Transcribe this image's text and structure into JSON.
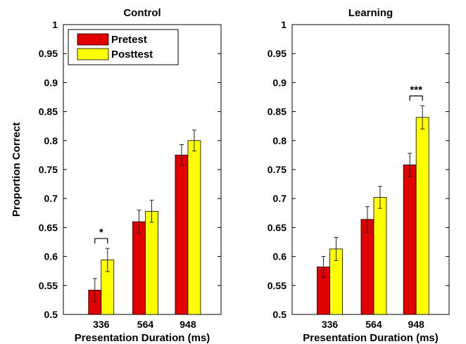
{
  "chart_data": [
    {
      "type": "bar",
      "title": "Control",
      "xlabel": "Presentation Duration (ms)",
      "ylabel": "Proportion Correct",
      "ylim": [
        0.5,
        1
      ],
      "yticks": [
        "0.5",
        "0.55",
        "0.6",
        "0.65",
        "0.7",
        "0.75",
        "0.8",
        "0.85",
        "0.9",
        "0.95",
        "1"
      ],
      "categories": [
        "336",
        "564",
        "948"
      ],
      "legend": {
        "placement": "top-left"
      },
      "series": [
        {
          "name": "Pretest",
          "color": "#e00000",
          "values": [
            0.542,
            0.66,
            0.775
          ],
          "errors": [
            0.02,
            0.02,
            0.018
          ]
        },
        {
          "name": "Posttest",
          "color": "#ffff00",
          "values": [
            0.594,
            0.678,
            0.8
          ],
          "errors": [
            0.02,
            0.019,
            0.018
          ]
        }
      ],
      "annotations": [
        {
          "category_index": 0,
          "text": "*"
        }
      ]
    },
    {
      "type": "bar",
      "title": "Learning",
      "xlabel": "Presentation Duration (ms)",
      "ylabel": "",
      "ylim": [
        0.5,
        1
      ],
      "yticks": [
        "0.5",
        "0.55",
        "0.6",
        "0.65",
        "0.7",
        "0.75",
        "0.8",
        "0.85",
        "0.9",
        "0.95",
        "1"
      ],
      "categories": [
        "336",
        "564",
        "948"
      ],
      "series": [
        {
          "name": "Pretest",
          "color": "#e00000",
          "values": [
            0.582,
            0.664,
            0.758
          ],
          "errors": [
            0.018,
            0.022,
            0.02
          ]
        },
        {
          "name": "Posttest",
          "color": "#ffff00",
          "values": [
            0.613,
            0.702,
            0.84
          ],
          "errors": [
            0.02,
            0.019,
            0.02
          ]
        }
      ],
      "annotations": [
        {
          "category_index": 2,
          "text": "***"
        }
      ]
    }
  ]
}
